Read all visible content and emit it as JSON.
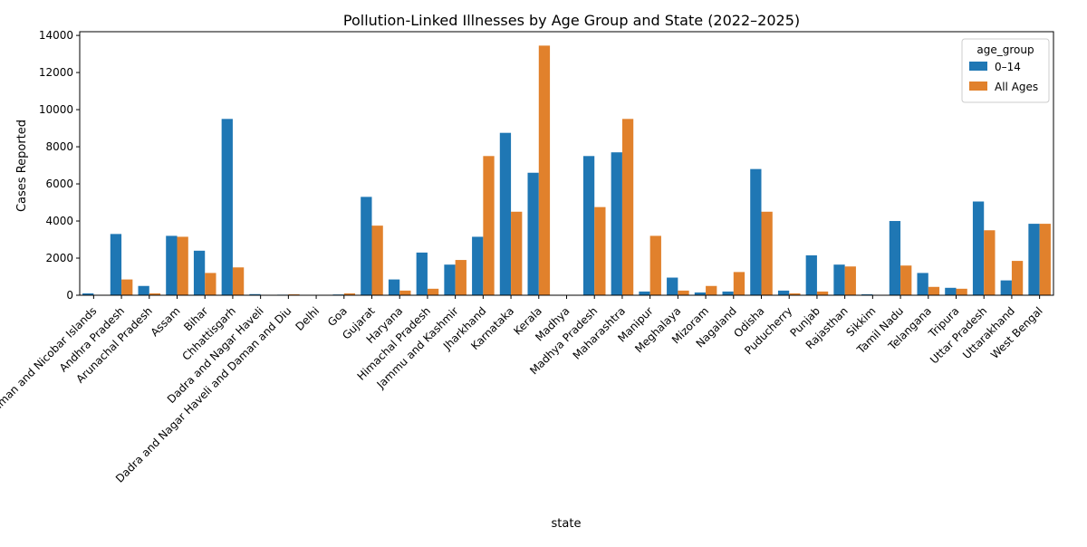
{
  "chart_data": {
    "type": "bar",
    "title": "Pollution-Linked Illnesses by Age Group and State (2022–2025)",
    "xlabel": "state",
    "ylabel": "Cases Reported",
    "ylim": [
      0,
      14200
    ],
    "yticks": [
      0,
      2000,
      4000,
      6000,
      8000,
      10000,
      12000,
      14000
    ],
    "grid": false,
    "legend": {
      "title": "age_group",
      "placement": "top-right"
    },
    "categories": [
      "Andaman and Nicobar Islands",
      "Andhra Pradesh",
      "Arunachal Pradesh",
      "Assam",
      "Bihar",
      "Chhattisgarh",
      "Dadra and Nagar Haveli",
      "Dadra and Nagar Haveli and Daman and Diu",
      "Delhi",
      "Goa",
      "Gujarat",
      "Haryana",
      "Himachal Pradesh",
      "Jammu and Kashmir",
      "Jharkhand",
      "Karnataka",
      "Kerala",
      "Madhya",
      "Madhya Pradesh",
      "Maharashtra",
      "Manipur",
      "Meghalaya",
      "Mizoram",
      "Nagaland",
      "Odisha",
      "Puducherry",
      "Punjab",
      "Rajasthan",
      "Sikkim",
      "Tamil Nadu",
      "Telangana",
      "Tripura",
      "Uttar Pradesh",
      "Uttarakhand",
      "West Bengal"
    ],
    "series": [
      {
        "name": "0–14",
        "color": "#1f77b4",
        "values": [
          100,
          3300,
          500,
          3200,
          2400,
          9500,
          60,
          30,
          10,
          40,
          5300,
          850,
          2300,
          1650,
          3150,
          8750,
          6600,
          0,
          7500,
          7700,
          200,
          950,
          150,
          200,
          6800,
          250,
          2150,
          1650,
          50,
          4000,
          1200,
          400,
          5050,
          800,
          3850
        ]
      },
      {
        "name": "All Ages",
        "color": "#e1812c",
        "values": [
          0,
          850,
          100,
          3150,
          1200,
          1500,
          0,
          50,
          20,
          100,
          3750,
          250,
          350,
          1900,
          7500,
          4500,
          13450,
          0,
          4750,
          9500,
          3200,
          250,
          500,
          1250,
          4500,
          100,
          200,
          1550,
          0,
          1600,
          450,
          350,
          3500,
          1850,
          3850
        ]
      }
    ]
  }
}
